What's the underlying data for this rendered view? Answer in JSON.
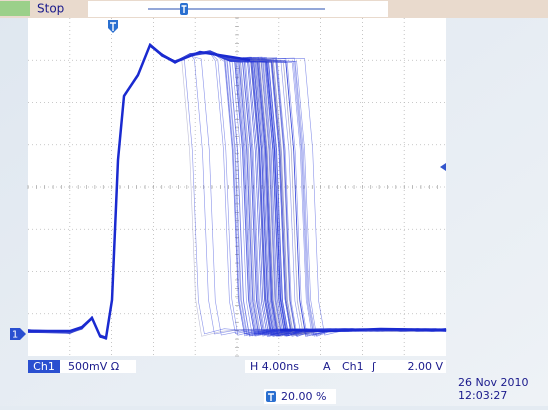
{
  "status": "Stop",
  "channel": {
    "label": "Ch1",
    "scale": "500mV Ω",
    "marker": "1"
  },
  "horizontal": "H 4.00ns",
  "trigger": {
    "mode": "A",
    "source": "Ch1",
    "slope": "ʃ",
    "level": "2.00 V",
    "position": "20.00 %"
  },
  "timestamp": {
    "date": "26 Nov 2010",
    "time": "12:03:27"
  }
}
